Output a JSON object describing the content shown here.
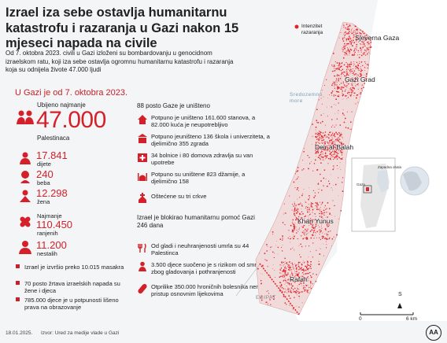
{
  "title": "Izrael iza sebe ostavlja humanitarnu katastrofu i razaranja u Gazi nakon 15 mjeseci napada na civile",
  "intro": "Od 7. oktobra 2023. civili u Gazi izloženi su bombardovanju u genocidnom izraelskom ratu, koji iza sebe ostavlja ogromnu humanitarnu katastrofu i razaranja koja su odnijela živote 47.000 ljudi",
  "left": {
    "section": "U Gazi je od 7. oktobra 2023.",
    "killed_label": "Ubijeno najmanje",
    "killed_value": "47.000",
    "killed_sub": "Palestinaca",
    "stats": [
      {
        "value": "17.841",
        "label": "dijete"
      },
      {
        "value": "240",
        "label": "beba"
      },
      {
        "value": "12.298",
        "label": "žena"
      }
    ],
    "injured_label": "Najmanje",
    "injured_value": "110.450",
    "injured_sub": "ranjenih",
    "missing_value": "11.200",
    "missing_sub": "nestalih",
    "bullets": [
      "Izrael je izvršio preko 10.015 masakra",
      "70 posto žrtava izraelskih napada su žene i djeca",
      "785.000 djece je u potpunosti lišeno prava na obrazovanje"
    ]
  },
  "middle": {
    "destroyed_heading": "88 posto Gaze je uništeno",
    "destroyed_items": [
      "Potpuno je uništeno 161.600 stanova, a 82.000 kuća je neupotrebljivo",
      "Potpuno jeuništeno 136 škola i univerziteta, a djelimično 355 zgrada",
      "34 bolnice i 80 domova zdravlja su van upotrebe",
      "Potpuno su uništene 823 džamije, a djelimično 158",
      "Oštećene su tri crkve"
    ],
    "blockade_heading": "Izrael je blokirao humanitarnu pomoć Gazi 246 dana",
    "blockade_items": [
      "Od gladi i neuhranjenosti umrla su 44 Palestinca",
      "3.500 djece suočeno je s rizikom od smrti zbog gladovanja i pothranjenosti",
      "Otprilike 350.000 hroničnih bolesnika nema pristup osnovnim lijekovima"
    ]
  },
  "map": {
    "legend": "Intenzitet razaranja",
    "places": [
      "Sjeverna Gaza",
      "Gazi Grad",
      "Deir al-Balah",
      "Khan Yunus",
      "Rafah"
    ],
    "sea_label": "Sredozemno more",
    "egypt_label": "EGIPAT",
    "inset_labels": [
      "Zapadna obala",
      "Gaza"
    ],
    "scale_labels": [
      "0",
      "6 km"
    ],
    "north": "S",
    "damage_color": "#e3232a",
    "land_color": "#f1dada",
    "sea_color": "#f4f5f6"
  },
  "footer": {
    "date": "18.01.2025.",
    "source": "Izvor: Ured za medije vlade u Gazi",
    "logo": "AA"
  }
}
